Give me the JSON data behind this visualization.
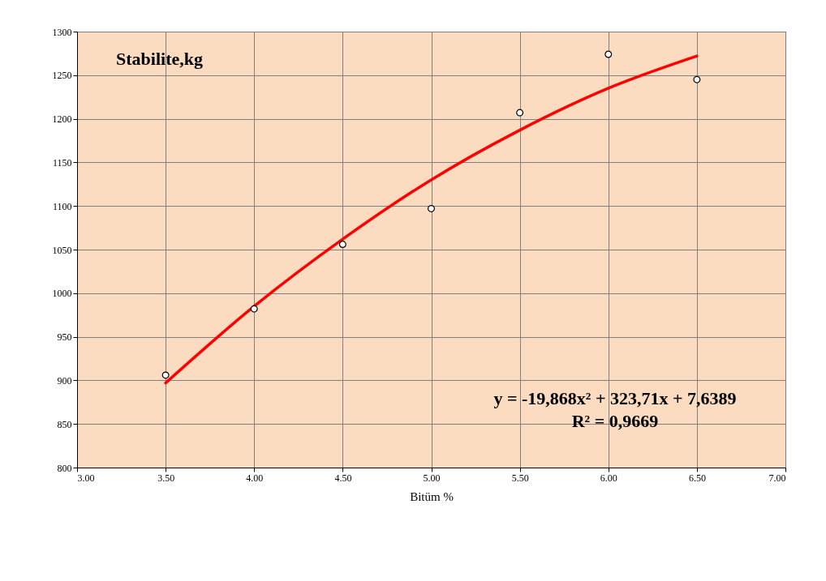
{
  "chart_data": {
    "type": "scatter",
    "title": "Stabilite,kg",
    "xlabel": "Bitüm %",
    "x": [
      3.5,
      4.0,
      4.5,
      5.0,
      5.5,
      6.0,
      6.5
    ],
    "series": [
      {
        "marker": "circle",
        "color": "#ffffff",
        "values": [
          906,
          982,
          1056,
          1097,
          1207,
          1274,
          1245
        ]
      },
      {
        "type": "line",
        "color": "#ff0000",
        "x": [
          3.5,
          4.0,
          4.5,
          5.0,
          5.5,
          6.0,
          6.5
        ],
        "values": [
          897,
          985,
          1062,
          1130,
          1187,
          1235,
          1272
        ]
      }
    ],
    "annotations": [
      "y = -19,868x² + 323,71x + 7,6389",
      "R² = 0,9669"
    ],
    "xlim": [
      3.0,
      7.0
    ],
    "xticks": [
      {
        "value": 3.0,
        "label": "3.00"
      },
      {
        "value": 3.5,
        "label": "3.50"
      },
      {
        "value": 4.0,
        "label": "4.00"
      },
      {
        "value": 4.5,
        "label": "4.50"
      },
      {
        "value": 5.0,
        "label": "5.00"
      },
      {
        "value": 5.5,
        "label": "5.50"
      },
      {
        "value": 6.0,
        "label": "6.00"
      },
      {
        "value": 6.5,
        "label": "6.50"
      },
      {
        "value": 7.0,
        "label": "7.00"
      }
    ],
    "ylim": [
      800,
      1300
    ],
    "yticks": [
      800,
      850,
      900,
      950,
      1000,
      1050,
      1100,
      1150,
      1200,
      1250,
      1300
    ],
    "grid": true
  }
}
